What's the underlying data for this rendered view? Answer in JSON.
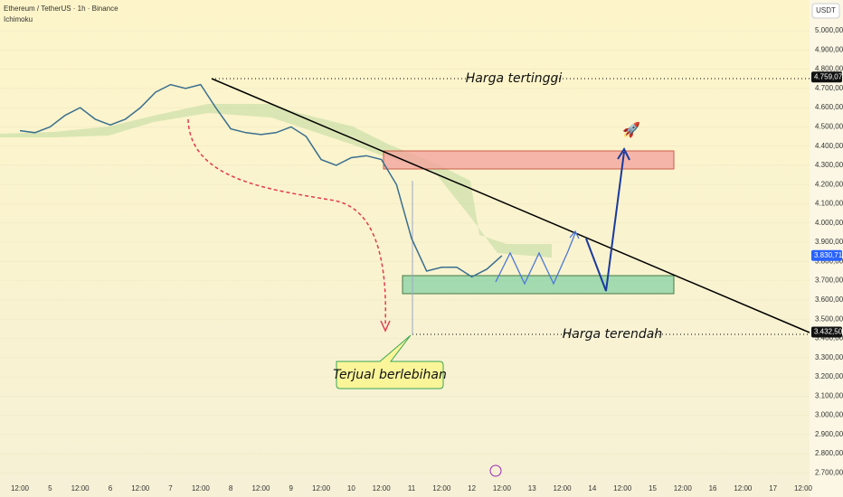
{
  "chart_data": {
    "type": "line",
    "title": "Ethereum / TetherUS · 1h · Binance",
    "subtitle": "Ichimoku",
    "currency": "USDT",
    "categories": [
      "12:00",
      null,
      "5",
      null,
      "12:00",
      null,
      "6",
      null,
      "12:00",
      null,
      "7",
      null,
      "12:00",
      null,
      "8",
      null,
      "12:00",
      null,
      "9",
      null,
      "12:00",
      null,
      "10",
      null,
      "12:00",
      null,
      "11",
      null,
      "12:00",
      null,
      "12",
      null,
      "12:00",
      null,
      "13",
      null,
      "12:00",
      null,
      "14",
      null,
      "12:00",
      null,
      "15",
      null,
      "12:00",
      null,
      "16",
      null,
      "12:00",
      null,
      "17",
      null,
      "12:00"
    ],
    "values": [
      4480,
      4470,
      4500,
      4560,
      4600,
      4540,
      4510,
      4540,
      4600,
      4680,
      4720,
      4700,
      4720,
      4600,
      4490,
      4470,
      4460,
      4470,
      4500,
      4450,
      4330,
      4300,
      4340,
      4350,
      4330,
      4200,
      3920,
      3750,
      3770,
      3770,
      3720,
      3760,
      3830,
      null,
      null,
      null,
      null,
      null,
      null,
      null,
      null,
      null,
      null,
      null,
      null,
      null,
      null,
      null,
      null,
      null,
      null,
      null,
      null
    ],
    "color": "#3a6f8f",
    "ylim": [
      2650,
      5160
    ],
    "yticks": [
      {
        "value": 2700,
        "label": "2.700,00"
      },
      {
        "value": 2800,
        "label": "2.800,00"
      },
      {
        "value": 2900,
        "label": "2.900,00"
      },
      {
        "value": 3000,
        "label": "3.000,00"
      },
      {
        "value": 3100,
        "label": "3.100,00"
      },
      {
        "value": 3200,
        "label": "3.200,00"
      },
      {
        "value": 3300,
        "label": "3.300,00"
      },
      {
        "value": 3400,
        "label": "3.400,00"
      },
      {
        "value": 3500,
        "label": "3.500,00"
      },
      {
        "value": 3600,
        "label": "3.600,00"
      },
      {
        "value": 3700,
        "label": "3.700,00"
      },
      {
        "value": 3800,
        "label": "3.800,00"
      },
      {
        "value": 3900,
        "label": "3.900,00"
      },
      {
        "value": 4000,
        "label": "4.000,00"
      },
      {
        "value": 4100,
        "label": "4.100,00"
      },
      {
        "value": 4200,
        "label": "4.200,00"
      },
      {
        "value": 4300,
        "label": "4.300,00"
      },
      {
        "value": 4400,
        "label": "4.400,00"
      },
      {
        "value": 4500,
        "label": "4.500,00"
      },
      {
        "value": 4600,
        "label": "4.600,00"
      },
      {
        "value": 4700,
        "label": "4.700,00"
      },
      {
        "value": 4800,
        "label": "4.800,00"
      },
      {
        "value": 4900,
        "label": "4.900,00"
      },
      {
        "value": 5000,
        "label": "5.000,00"
      }
    ],
    "price_labels": [
      {
        "value": 4759.07,
        "label": "4.759,07",
        "color": "#111111"
      },
      {
        "value": 3830.71,
        "label": "3.830,71",
        "color": "#2962ff"
      },
      {
        "value": 3432.5,
        "label": "3.432,50",
        "color": "#111111"
      }
    ],
    "annotations": [
      "Harga tertinggi",
      "Harga terendah",
      "Terjual berlebihan"
    ]
  }
}
